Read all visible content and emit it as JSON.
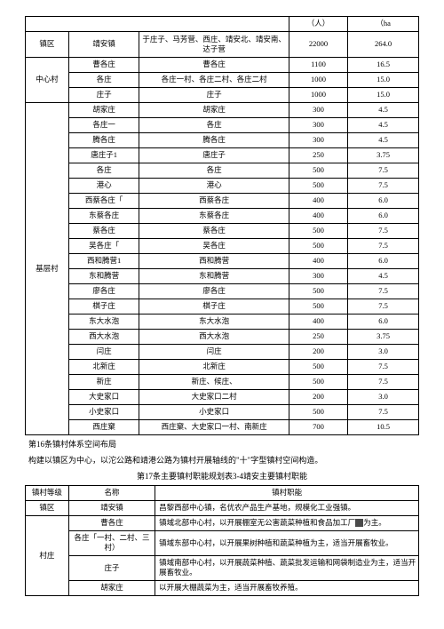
{
  "upper_table": {
    "hdr": {
      "c4": "（人）",
      "c5": "（ha"
    },
    "zhenqu": {
      "label": "镇区",
      "name": "靖安镇",
      "villages": "于庄子、马芳营、西庄、靖安北、靖安南、达子营",
      "pop": "22000",
      "area": "264.0"
    },
    "center": {
      "label": "中心村",
      "rows": [
        {
          "name": "曹各庄",
          "v": "曹各庄",
          "pop": "1100",
          "area": "16.5"
        },
        {
          "name": "各庄",
          "v": "各庄一村、各庄二村、各庄二村",
          "pop": "1000",
          "area": "15.0"
        },
        {
          "name": "庄子",
          "v": "庄子",
          "pop": "1000",
          "area": "15.0"
        }
      ]
    },
    "base": {
      "label": "基层村",
      "rows": [
        {
          "name": "胡家庄",
          "v": "胡家庄",
          "pop": "300",
          "area": "4.5"
        },
        {
          "name": "各庄一",
          "v": "各庄",
          "pop": "300",
          "area": "4.5"
        },
        {
          "name": "腾各庄",
          "v": "腾各庄",
          "pop": "300",
          "area": "4.5"
        },
        {
          "name": "唐庄子1",
          "v": "唐庄子",
          "pop": "250",
          "area": "3.75"
        },
        {
          "name": "各庄",
          "v": "各庄",
          "pop": "500",
          "area": "7.5"
        },
        {
          "name": "港心",
          "v": "港心",
          "pop": "500",
          "area": "7.5"
        },
        {
          "name": "西蔡各庄「",
          "v": "西蔡各庄",
          "pop": "400",
          "area": "6.0"
        },
        {
          "name": "东蔡各庄",
          "v": "东蔡各庄",
          "pop": "400",
          "area": "6.0"
        },
        {
          "name": "蔡各庄",
          "v": "蔡各庄",
          "pop": "500",
          "area": "7.5"
        },
        {
          "name": "吴各庄「",
          "v": "吴各庄",
          "pop": "500",
          "area": "7.5"
        },
        {
          "name": "西和腾营1",
          "v": "西和腾营",
          "pop": "400",
          "area": "6.0"
        },
        {
          "name": "东和腾营",
          "v": "东和腾营",
          "pop": "300",
          "area": "4.5"
        },
        {
          "name": "廖各庄",
          "v": "廖各庄",
          "pop": "500",
          "area": "7.5"
        },
        {
          "name": "棋子庄",
          "v": "棋子庄",
          "pop": "500",
          "area": "7.5"
        },
        {
          "name": "东大水泡",
          "v": "东大水泡",
          "pop": "400",
          "area": "6.0"
        },
        {
          "name": "西大水泡",
          "v": "西大水泡",
          "pop": "250",
          "area": "3.75"
        },
        {
          "name": "闫庄",
          "v": "闫庄",
          "pop": "200",
          "area": "3.0"
        },
        {
          "name": "北新庄",
          "v": "北新庄",
          "pop": "500",
          "area": "7.5"
        },
        {
          "name": "新庄",
          "v": "新庄、候庄、",
          "pop": "500",
          "area": "7.5"
        },
        {
          "name": "大史家口",
          "v": "大史家口二村",
          "pop": "200",
          "area": "3.0"
        },
        {
          "name": "小史家口",
          "v": "小史家口",
          "pop": "500",
          "area": "7.5"
        },
        {
          "name": "西庄窠",
          "v": "西庄窠、大史家口一村、南新庄",
          "pop": "700",
          "area": "10.5"
        }
      ]
    }
  },
  "section16": {
    "title": "第16条镇村体系空间布局",
    "body": "构建以镇区为中心，以沱公路和靖港公路为镇村开展轴线的\"十\"字型镇村空间构造。"
  },
  "section17": {
    "title_center": "第17条主要镇村职能规划表3-4靖安主要镇村职能",
    "hdr": {
      "c1": "镇村等级",
      "c2": "名称",
      "c3": "镇村职能"
    },
    "zhenqu": {
      "label": "镇区",
      "name": "靖安镇",
      "desc": "昌黎西部中心镇，名优农产品生产基地，规模化工业强镇。"
    },
    "cunzhuang": {
      "label": "村庄",
      "rows": [
        {
          "name": "曹各庄",
          "desc_pre": "镇域北部中心村，以开展棚室无公害蔬菜种植和食品加工厂",
          "desc_post": "为主。"
        },
        {
          "name": "各庄「一村、二村、三村）",
          "desc": "镇域东部中心村，以开展果树种植和蔬菜种植为主，适当开展畜牧业。"
        },
        {
          "name": "庄子",
          "desc": "镇域南部中心村，以开展蔬菜种植、蔬菜批发运输和网袋制造业为主，适当开展畜牧业。"
        },
        {
          "name": "胡家庄",
          "desc": "以开展大棚蔬菜为主，适当开展畜牧养殖。"
        }
      ]
    }
  }
}
